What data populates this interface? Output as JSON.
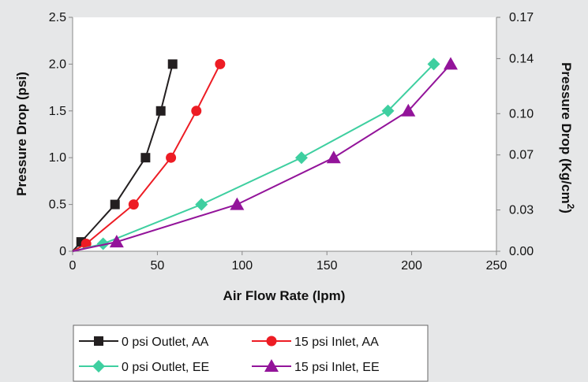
{
  "chart_data": {
    "type": "line",
    "xlabel": "Air Flow Rate (lpm)",
    "ylabel": "Pressure Drop  (psi)",
    "y2label": "Pressure Drop (Kg/cm",
    "y2label_sup": "2",
    "y2label_close": ")",
    "xlim": [
      0,
      250
    ],
    "ylim": [
      0,
      2.5
    ],
    "xticks": [
      0,
      50,
      100,
      150,
      200,
      250
    ],
    "yticks": [
      0,
      0.5,
      1.0,
      1.5,
      2.0,
      2.5
    ],
    "y2ticks": [
      0.0,
      0.03,
      0.07,
      0.1,
      0.14,
      0.17
    ],
    "xtick_labels": [
      "0",
      "50",
      "100",
      "150",
      "200",
      "250"
    ],
    "ytick_labels": [
      "0",
      "0.5",
      "1.0",
      "1.5",
      "2.0",
      "2.5"
    ],
    "y2tick_labels": [
      "0.00",
      "0.03",
      "0.07",
      "0.10",
      "0.14",
      "0.17"
    ],
    "grid": false,
    "legend_position": "bottom",
    "series": [
      {
        "name": "0 psi Outlet, AA",
        "color": "#231f20",
        "marker": "square",
        "x": [
          0,
          5,
          25,
          43,
          52,
          59
        ],
        "y": [
          0,
          0.1,
          0.5,
          1.0,
          1.5,
          2.0
        ]
      },
      {
        "name": "15 psi Inlet, AA",
        "color": "#ed1c24",
        "marker": "circle",
        "x": [
          0,
          8,
          36,
          58,
          73,
          87
        ],
        "y": [
          0,
          0.08,
          0.5,
          1.0,
          1.5,
          2.0
        ]
      },
      {
        "name": "0 psi Outlet, EE",
        "color": "#3ecfa0",
        "marker": "diamond",
        "x": [
          0,
          18,
          76,
          135,
          186,
          213
        ],
        "y": [
          0,
          0.08,
          0.5,
          1.0,
          1.5,
          2.0
        ]
      },
      {
        "name": "15 psi Inlet, EE",
        "color": "#93149a",
        "marker": "triangle",
        "x": [
          0,
          26,
          97,
          154,
          198,
          223
        ],
        "y": [
          0,
          0.1,
          0.5,
          1.0,
          1.5,
          2.0
        ]
      }
    ]
  }
}
